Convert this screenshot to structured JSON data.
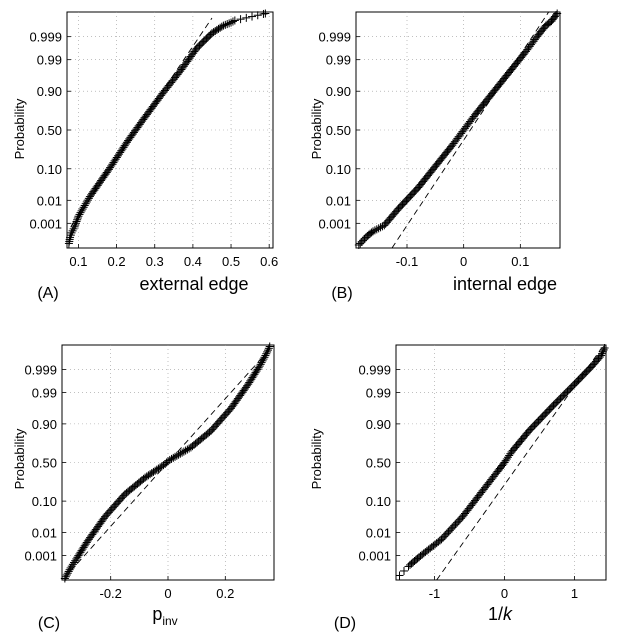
{
  "chart_data": [
    {
      "type": "scatter",
      "panel_label": "(A)",
      "xlabel": "external edge",
      "xlabel_sub": "",
      "xlabel_italic": false,
      "ylabel": "Probability",
      "y_scale": "normal-probability",
      "grid": true,
      "xlim": [
        0.07,
        0.61
      ],
      "xticks": [
        0.1,
        0.2,
        0.3,
        0.4,
        0.5,
        0.6
      ],
      "xtick_labels": [
        "0.1",
        "0.2",
        "0.3",
        "0.4",
        "0.5",
        "0.6"
      ],
      "yticks": [
        0.001,
        0.01,
        0.1,
        0.5,
        0.9,
        0.99,
        0.999
      ],
      "ytick_labels": [
        "0.001",
        "0.01",
        "0.10",
        "0.50",
        "0.90",
        "0.99",
        "0.999"
      ],
      "ylim_sigma": [
        -3.9,
        3.9
      ],
      "reference_line": {
        "x": [
          0.08,
          0.45
        ],
        "sigma": [
          -3.2,
          3.7
        ]
      },
      "series_points": [
        {
          "x": 0.075,
          "sigma": -3.75
        },
        {
          "x": 0.078,
          "sigma": -3.55
        },
        {
          "x": 0.082,
          "sigma": -3.4
        },
        {
          "x": 0.09,
          "sigma": -3.2
        },
        {
          "x": 0.1,
          "sigma": -2.85
        },
        {
          "x": 0.13,
          "sigma": -2.2
        },
        {
          "x": 0.18,
          "sigma": -1.3
        },
        {
          "x": 0.23,
          "sigma": -0.35
        },
        {
          "x": 0.27,
          "sigma": 0.35
        },
        {
          "x": 0.32,
          "sigma": 1.2
        },
        {
          "x": 0.37,
          "sigma": 2.0
        },
        {
          "x": 0.41,
          "sigma": 2.7
        },
        {
          "x": 0.45,
          "sigma": 3.2
        },
        {
          "x": 0.48,
          "sigma": 3.45
        },
        {
          "x": 0.5,
          "sigma": 3.55
        },
        {
          "x": 0.51,
          "sigma": 3.62
        },
        {
          "x": 0.59,
          "sigma": 3.85
        }
      ]
    },
    {
      "type": "scatter",
      "panel_label": "(B)",
      "xlabel": "internal edge",
      "xlabel_sub": "",
      "xlabel_italic": false,
      "ylabel": "Probability",
      "y_scale": "normal-probability",
      "grid": true,
      "xlim": [
        -0.19,
        0.17
      ],
      "xticks": [
        -0.1,
        0,
        0.1
      ],
      "xtick_labels": [
        "-0.1",
        "0",
        "0.1"
      ],
      "yticks": [
        0.001,
        0.01,
        0.1,
        0.5,
        0.9,
        0.99,
        0.999
      ],
      "ytick_labels": [
        "0.001",
        "0.01",
        "0.10",
        "0.50",
        "0.90",
        "0.99",
        "0.999"
      ],
      "ylim_sigma": [
        -3.9,
        3.9
      ],
      "reference_line": {
        "x": [
          -0.13,
          0.15
        ],
        "sigma": [
          -4.0,
          3.9
        ]
      },
      "series_points": [
        {
          "x": -0.185,
          "sigma": -3.8
        },
        {
          "x": -0.17,
          "sigma": -3.5
        },
        {
          "x": -0.16,
          "sigma": -3.35
        },
        {
          "x": -0.14,
          "sigma": -3.15
        },
        {
          "x": -0.115,
          "sigma": -2.6
        },
        {
          "x": -0.08,
          "sigma": -1.9
        },
        {
          "x": -0.05,
          "sigma": -1.2
        },
        {
          "x": -0.02,
          "sigma": -0.5
        },
        {
          "x": 0.0,
          "sigma": 0.0
        },
        {
          "x": 0.02,
          "sigma": 0.5
        },
        {
          "x": 0.05,
          "sigma": 1.2
        },
        {
          "x": 0.08,
          "sigma": 1.9
        },
        {
          "x": 0.11,
          "sigma": 2.6
        },
        {
          "x": 0.13,
          "sigma": 3.1
        },
        {
          "x": 0.145,
          "sigma": 3.45
        },
        {
          "x": 0.155,
          "sigma": 3.6
        },
        {
          "x": 0.165,
          "sigma": 3.85
        }
      ]
    },
    {
      "type": "scatter",
      "panel_label": "(C)",
      "xlabel": "p",
      "xlabel_sub": "inv",
      "xlabel_italic": false,
      "ylabel": "Probability",
      "y_scale": "normal-probability",
      "grid": true,
      "xlim": [
        -0.37,
        0.37
      ],
      "xticks": [
        -0.2,
        0,
        0.2
      ],
      "xtick_labels": [
        "-0.2",
        "0",
        "0.2"
      ],
      "yticks": [
        0.001,
        0.01,
        0.1,
        0.5,
        0.9,
        0.99,
        0.999
      ],
      "ytick_labels": [
        "0.001",
        "0.01",
        "0.10",
        "0.50",
        "0.90",
        "0.99",
        "0.999"
      ],
      "ylim_sigma": [
        -3.9,
        3.9
      ],
      "reference_line": {
        "x": [
          -0.34,
          0.34
        ],
        "sigma": [
          -3.6,
          3.6
        ]
      },
      "series_points": [
        {
          "x": -0.36,
          "sigma": -3.85
        },
        {
          "x": -0.34,
          "sigma": -3.5
        },
        {
          "x": -0.32,
          "sigma": -3.2
        },
        {
          "x": -0.28,
          "sigma": -2.6
        },
        {
          "x": -0.22,
          "sigma": -1.8
        },
        {
          "x": -0.15,
          "sigma": -1.05
        },
        {
          "x": -0.08,
          "sigma": -0.5
        },
        {
          "x": -0.01,
          "sigma": -0.05
        },
        {
          "x": 0.0,
          "sigma": 0.05
        },
        {
          "x": 0.08,
          "sigma": 0.5
        },
        {
          "x": 0.15,
          "sigma": 1.05
        },
        {
          "x": 0.22,
          "sigma": 1.8
        },
        {
          "x": 0.28,
          "sigma": 2.6
        },
        {
          "x": 0.32,
          "sigma": 3.2
        },
        {
          "x": 0.34,
          "sigma": 3.55
        },
        {
          "x": 0.355,
          "sigma": 3.85
        }
      ]
    },
    {
      "type": "scatter",
      "panel_label": "(D)",
      "xlabel": "1/",
      "xlabel_suffix": "k",
      "xlabel_sub": "",
      "xlabel_italic": true,
      "ylabel": "Probability",
      "y_scale": "normal-probability",
      "grid": true,
      "xlim": [
        -1.55,
        1.45
      ],
      "xticks": [
        -1,
        0,
        1
      ],
      "xtick_labels": [
        "-1",
        "0",
        "1"
      ],
      "yticks": [
        0.001,
        0.01,
        0.1,
        0.5,
        0.9,
        0.99,
        0.999
      ],
      "ytick_labels": [
        "0.001",
        "0.01",
        "0.10",
        "0.50",
        "0.90",
        "0.99",
        "0.999"
      ],
      "ylim_sigma": [
        -3.9,
        3.9
      ],
      "reference_line": {
        "x": [
          -1.0,
          1.45
        ],
        "sigma": [
          -4.0,
          4.0
        ]
      },
      "series_points": [
        {
          "x": -1.5,
          "sigma": -3.75
        },
        {
          "x": -1.35,
          "sigma": -3.4
        },
        {
          "x": -1.2,
          "sigma": -3.1
        },
        {
          "x": -0.9,
          "sigma": -2.55
        },
        {
          "x": -0.6,
          "sigma": -1.8
        },
        {
          "x": -0.35,
          "sigma": -1.05
        },
        {
          "x": -0.1,
          "sigma": -0.3
        },
        {
          "x": 0.0,
          "sigma": 0.0
        },
        {
          "x": 0.1,
          "sigma": 0.35
        },
        {
          "x": 0.35,
          "sigma": 1.05
        },
        {
          "x": 0.7,
          "sigma": 1.9
        },
        {
          "x": 1.0,
          "sigma": 2.6
        },
        {
          "x": 1.25,
          "sigma": 3.2
        },
        {
          "x": 1.38,
          "sigma": 3.55
        },
        {
          "x": 1.43,
          "sigma": 3.8
        }
      ]
    }
  ]
}
